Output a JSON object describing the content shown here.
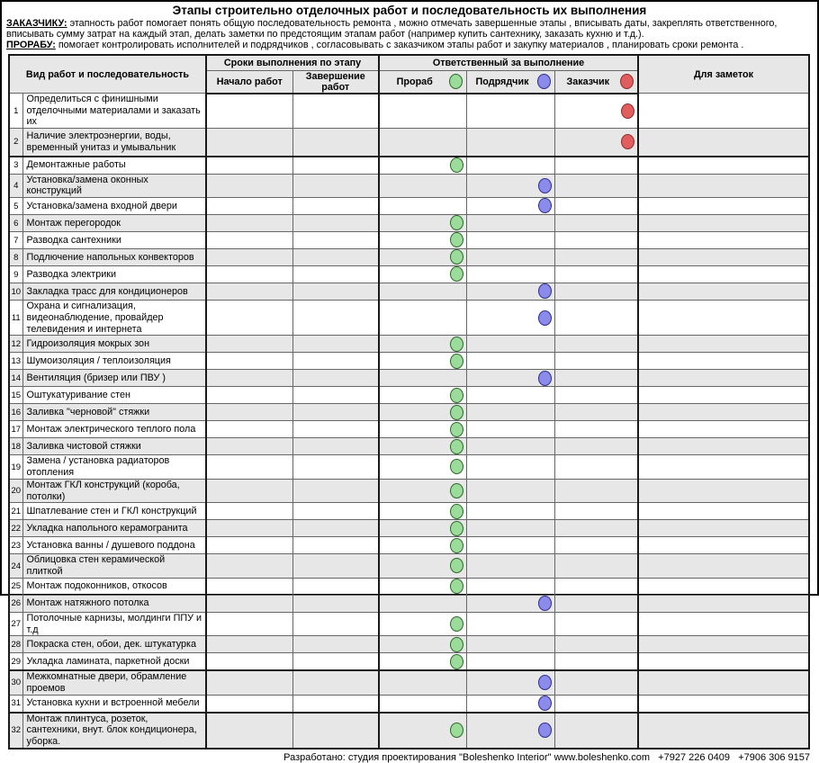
{
  "page": {
    "title": "Этапы строительно отделочных работ и последовательность их выполнения",
    "intro": [
      {
        "label": "ЗАКАЗЧИКУ:",
        "text": "этапность работ помогает  понять общую последовательность ремонта , можно отмечать завершенные этапы , вписывать даты, закреплять ответственного, вписывать сумму затрат на каждый этап, делать заметки по предстоящим этапам работ  (например купить сантехнику, заказать кухню и т.д.)."
      },
      {
        "label": "ПРОРАБУ:",
        "text": "помогает контролировать исполнителей и подрядчиков , согласовывать с заказчиком этапы работ и закупку материалов , планировать сроки ремонта ."
      }
    ],
    "footer": "Разработано: студия проектирования \"Boleshenko Interior\" www.boleshenko.com   +7927 226 0409   +7906 306 9157"
  },
  "table": {
    "headers": {
      "work": "Вид работ и последовательность",
      "dates_group": "Сроки выполнения по этапу",
      "start": "Начало работ",
      "end": "Завершение работ",
      "resp_group": "Ответственный за выполнение",
      "foreman": "Прораб",
      "contractor": "Подрядчик",
      "client": "Заказчик",
      "notes": "Для заметок"
    },
    "colors": {
      "foreman": "#9bdc9b",
      "contractor": "#8b8bec",
      "client": "#e25d5d"
    },
    "rows": [
      {
        "n": 1,
        "work": "Определиться с финишными отделочными материалами и заказать их",
        "marks": [
          "client"
        ],
        "tall": true
      },
      {
        "n": 2,
        "work": "Наличие электроэнергии, воды, временный унитаз и умывальник",
        "marks": [
          "client"
        ],
        "tall": true
      },
      {
        "n": 3,
        "work": "Демонтажные работы",
        "marks": [
          "foreman"
        ],
        "group_start": true
      },
      {
        "n": 4,
        "work": "Установка/замена оконных конструкций",
        "marks": [
          "contractor"
        ]
      },
      {
        "n": 5,
        "work": "Установка/замена входной двери",
        "marks": [
          "contractor"
        ]
      },
      {
        "n": 6,
        "work": "Монтаж перегородок",
        "marks": [
          "foreman"
        ]
      },
      {
        "n": 7,
        "work": "Разводка сантехники",
        "marks": [
          "foreman"
        ]
      },
      {
        "n": 8,
        "work": "Подлючение напольных конвекторов",
        "marks": [
          "foreman"
        ]
      },
      {
        "n": 9,
        "work": "Разводка электрики",
        "marks": [
          "foreman"
        ]
      },
      {
        "n": 10,
        "work": "Закладка трасс для кондиционеров",
        "marks": [
          "contractor"
        ]
      },
      {
        "n": 11,
        "work": "Охрана и сигнализация, видеонаблюдение, провайдер телевидения и интернета",
        "marks": [
          "contractor"
        ],
        "tall": true
      },
      {
        "n": 12,
        "work": "Гидроизоляция мокрых зон",
        "marks": [
          "foreman"
        ]
      },
      {
        "n": 13,
        "work": "Шумоизоляция / теплоизоляция",
        "marks": [
          "foreman"
        ]
      },
      {
        "n": 14,
        "work": "Вентиляция (бризер или ПВУ )",
        "marks": [
          "contractor"
        ]
      },
      {
        "n": 15,
        "work": "Оштукатуривание стен",
        "marks": [
          "foreman"
        ]
      },
      {
        "n": 16,
        "work": "Заливка \"черновой\" стяжки",
        "marks": [
          "foreman"
        ]
      },
      {
        "n": 17,
        "work": "Монтаж электрического теплого пола",
        "marks": [
          "foreman"
        ]
      },
      {
        "n": 18,
        "work": "Заливка чистовой стяжки",
        "marks": [
          "foreman"
        ]
      },
      {
        "n": 19,
        "work": "Замена / установка радиаторов отопления",
        "marks": [
          "foreman"
        ]
      },
      {
        "n": 20,
        "work": "Монтаж ГКЛ конструкций  (короба, потолки)",
        "marks": [
          "foreman"
        ]
      },
      {
        "n": 21,
        "work": "Шпатлевание стен и ГКЛ конструкций",
        "marks": [
          "foreman"
        ]
      },
      {
        "n": 22,
        "work": "Укладка напольного керамогранита",
        "marks": [
          "foreman"
        ]
      },
      {
        "n": 23,
        "work": "Установка ванны / душевого поддона",
        "marks": [
          "foreman"
        ]
      },
      {
        "n": 24,
        "work": "Облицовка стен керамической плиткой",
        "marks": [
          "foreman"
        ]
      },
      {
        "n": 25,
        "work": "Монтаж подоконников, откосов",
        "marks": [
          "foreman"
        ]
      },
      {
        "n": 26,
        "work": "Монтаж натяжного потолка",
        "marks": [
          "contractor"
        ]
      },
      {
        "n": 27,
        "work": "Потолочные карнизы, молдинги ППУ и т.д",
        "marks": [
          "foreman"
        ]
      },
      {
        "n": 28,
        "work": "Покраска стен, обои, дек. штукатурка",
        "marks": [
          "foreman"
        ]
      },
      {
        "n": 29,
        "work": "Укладка ламината, паркетной доски",
        "marks": [
          "foreman"
        ]
      },
      {
        "n": 30,
        "work": "Межкомнатные двери, обрамление проемов",
        "marks": [
          "contractor"
        ],
        "group_start": true
      },
      {
        "n": 31,
        "work": "Установка кухни и встроенной мебели",
        "marks": [
          "contractor"
        ]
      },
      {
        "n": 32,
        "work": "Монтаж плинтуса, розеток, сантехники, внут. блок кондиционера, уборка.",
        "marks": [
          "foreman",
          "contractor"
        ],
        "tall": true,
        "group_start": true
      }
    ]
  }
}
